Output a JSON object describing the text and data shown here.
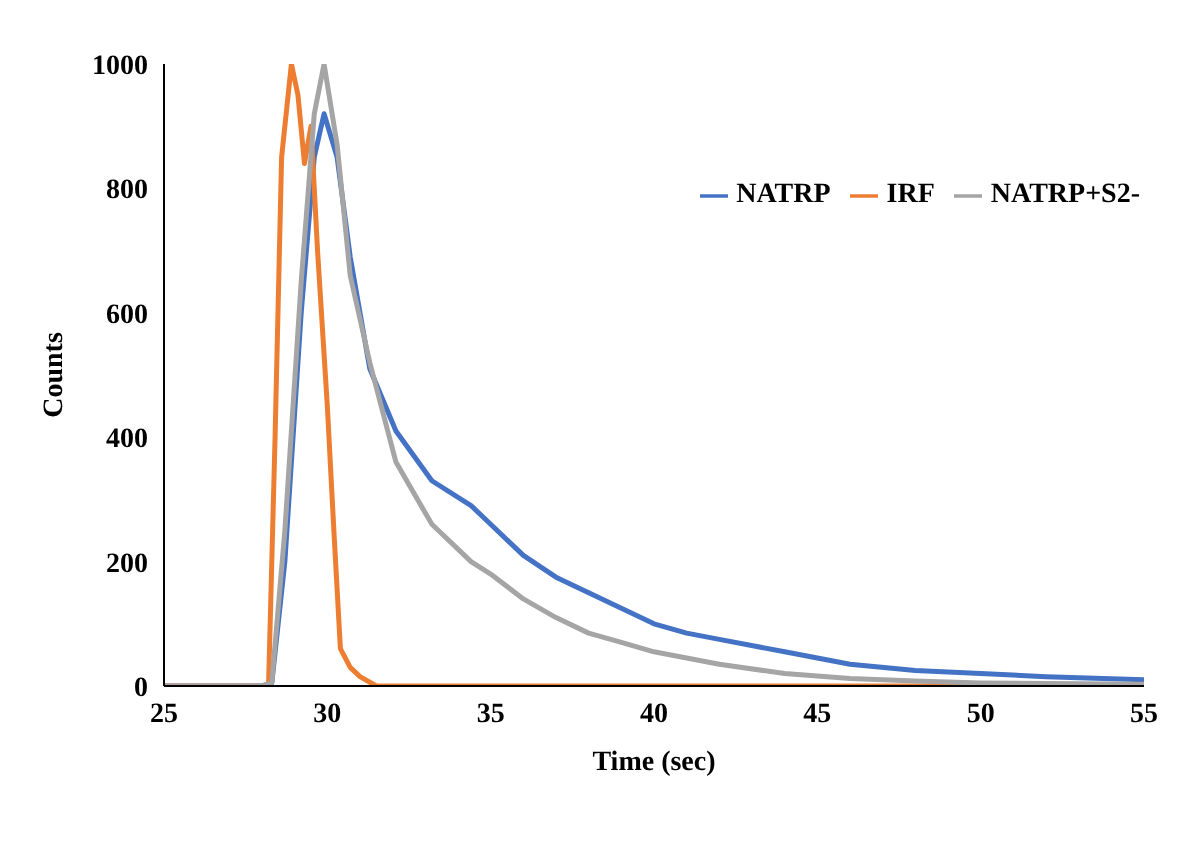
{
  "chart_data": {
    "type": "line",
    "xlabel": "Time (sec)",
    "ylabel": "Counts",
    "xlim": [
      25,
      55
    ],
    "xticks": [
      25,
      30,
      35,
      40,
      45,
      50,
      55
    ],
    "ylim": [
      0,
      1000
    ],
    "yticks": [
      0,
      200,
      400,
      600,
      800,
      1000
    ],
    "grid": false,
    "legend": "top right",
    "marker": "none",
    "line_style": "solid",
    "series": [
      {
        "name": "NATRP",
        "color": "#4472c4",
        "x": [
          25,
          28,
          28.3,
          28.7,
          29.2,
          29.6,
          29.9,
          30.3,
          30.7,
          31.3,
          32.1,
          33.2,
          34.4,
          35,
          36,
          37,
          38,
          39,
          40,
          41,
          42,
          44,
          46,
          48,
          50,
          52,
          55
        ],
        "values": [
          0,
          0,
          5,
          200,
          600,
          850,
          920,
          850,
          690,
          510,
          410,
          330,
          290,
          260,
          210,
          175,
          150,
          125,
          100,
          85,
          75,
          55,
          35,
          25,
          20,
          15,
          10
        ]
      },
      {
        "name": "IRF",
        "color": "#ed7d31",
        "x": [
          25,
          28,
          28.2,
          28.4,
          28.6,
          28.9,
          29.1,
          29.3,
          29.5,
          29.7,
          30,
          30.2,
          30.4,
          30.7,
          31,
          31.5,
          55
        ],
        "values": [
          0,
          0,
          0,
          400,
          850,
          1000,
          950,
          840,
          900,
          700,
          450,
          250,
          60,
          30,
          15,
          0,
          0
        ]
      },
      {
        "name": "NATRP+S2-",
        "color": "#a5a5a5",
        "x": [
          25,
          28,
          28.3,
          28.7,
          29.2,
          29.6,
          29.9,
          30.3,
          30.7,
          31.3,
          32.1,
          33.2,
          34.4,
          35,
          36,
          37,
          38,
          39,
          40,
          42,
          44,
          46,
          48,
          50,
          55
        ],
        "values": [
          0,
          0,
          5,
          250,
          650,
          920,
          1000,
          870,
          660,
          520,
          360,
          260,
          200,
          180,
          140,
          110,
          85,
          70,
          55,
          35,
          20,
          12,
          8,
          5,
          3
        ]
      }
    ]
  }
}
